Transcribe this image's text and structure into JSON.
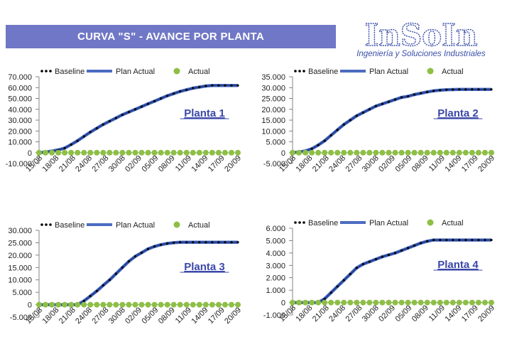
{
  "header": {
    "title": "CURVA \"S\" - AVANCE POR PLANTA"
  },
  "logo": {
    "name": "InSoIn",
    "tagline": "Ingeniería y Soluciones Industriales",
    "color": "#3b4fa8"
  },
  "colors": {
    "baseline": "#000000",
    "plan": "#1f3f95",
    "plan_outline": "#4b6cc1",
    "actual": "#8dbf45",
    "link": "#3b47a8"
  },
  "legend": {
    "baseline": "Baseline",
    "plan": "Plan Actual",
    "actual": "Actual"
  },
  "chart_data": [
    {
      "type": "line",
      "title": "Planta 1",
      "x_ticks": [
        "15/08",
        "18/08",
        "21/08",
        "24/08",
        "27/08",
        "30/08",
        "02/09",
        "05/09",
        "08/09",
        "11/09",
        "14/09",
        "17/09",
        "20/09"
      ],
      "y_ticks": [
        "-10.000",
        "0",
        "10.000",
        "20.000",
        "30.000",
        "40.000",
        "50.000",
        "60.000",
        "70.000"
      ],
      "ylim": [
        -10000,
        70000
      ],
      "x_start": "15/08",
      "baseline": [
        0,
        500,
        1500,
        2500,
        4200,
        7500,
        11000,
        15000,
        19000,
        22500,
        26000,
        29000,
        32000,
        35000,
        37500,
        40000,
        42500,
        45000,
        47500,
        50000,
        52500,
        54500,
        56500,
        58000,
        59500,
        60500,
        61500,
        62000,
        62000,
        62000,
        62000,
        62000
      ],
      "plan_actual": [
        0,
        500,
        1500,
        2500,
        4200,
        7500,
        11000,
        15000,
        19000,
        22500,
        26000,
        29000,
        32000,
        35000,
        37500,
        40000,
        42500,
        45000,
        47500,
        50000,
        52500,
        54500,
        56500,
        58000,
        59500,
        60500,
        61500,
        62000,
        62000,
        62000,
        62000,
        62000
      ],
      "actual": [
        0,
        0,
        0,
        0,
        0,
        0,
        0,
        0,
        0,
        0,
        0,
        0,
        0,
        0,
        0,
        0,
        0,
        0,
        0,
        0,
        0,
        0,
        0,
        0,
        0,
        0,
        0,
        0,
        0,
        0,
        0,
        0
      ]
    },
    {
      "type": "line",
      "title": "Planta 2",
      "x_ticks": [
        "15/08",
        "18/08",
        "21/08",
        "24/08",
        "27/08",
        "30/08",
        "02/09",
        "05/09",
        "08/09",
        "11/09",
        "14/09",
        "17/09",
        "20/09"
      ],
      "y_ticks": [
        "-5.000",
        "0",
        "5.000",
        "10.000",
        "15.000",
        "20.000",
        "25.000",
        "30.000",
        "35.000"
      ],
      "ylim": [
        -5000,
        35000
      ],
      "x_start": "15/08",
      "baseline": [
        0,
        300,
        800,
        1800,
        3500,
        5500,
        8000,
        10500,
        13000,
        15000,
        17000,
        18500,
        20000,
        21500,
        22500,
        23500,
        24500,
        25500,
        26000,
        26800,
        27400,
        28000,
        28500,
        28800,
        29000,
        29100,
        29200,
        29200,
        29200,
        29200,
        29200,
        29200
      ],
      "plan_actual": [
        0,
        300,
        800,
        1800,
        3500,
        5500,
        8000,
        10500,
        13000,
        15000,
        17000,
        18500,
        20000,
        21500,
        22500,
        23500,
        24500,
        25500,
        26000,
        26800,
        27400,
        28000,
        28500,
        28800,
        29000,
        29100,
        29200,
        29200,
        29200,
        29200,
        29200,
        29200
      ],
      "actual": [
        0,
        0,
        0,
        0,
        0,
        0,
        0,
        0,
        0,
        0,
        0,
        0,
        0,
        0,
        0,
        0,
        0,
        0,
        0,
        0,
        0,
        0,
        0,
        0,
        0,
        0,
        0,
        0,
        0,
        0,
        0,
        0
      ]
    },
    {
      "type": "line",
      "title": "Planta 3",
      "x_ticks": [
        "15/08",
        "18/08",
        "21/08",
        "24/08",
        "27/08",
        "30/08",
        "02/09",
        "05/09",
        "08/09",
        "11/09",
        "14/09",
        "17/09",
        "20/09"
      ],
      "y_ticks": [
        "-5.000",
        "0",
        "5.000",
        "10.000",
        "15.000",
        "20.000",
        "25.000",
        "30.000"
      ],
      "ylim": [
        -5000,
        30000
      ],
      "x_start": "15/08",
      "baseline": [
        0,
        0,
        0,
        0,
        0,
        0,
        0,
        1500,
        3500,
        5500,
        7800,
        10000,
        12500,
        15000,
        17500,
        19500,
        21000,
        22500,
        23500,
        24200,
        24700,
        25000,
        25200,
        25200,
        25200,
        25200,
        25200,
        25200,
        25200,
        25200,
        25200,
        25200
      ],
      "plan_actual": [
        0,
        0,
        0,
        0,
        0,
        0,
        0,
        1500,
        3500,
        5500,
        7800,
        10000,
        12500,
        15000,
        17500,
        19500,
        21000,
        22500,
        23500,
        24200,
        24700,
        25000,
        25200,
        25200,
        25200,
        25200,
        25200,
        25200,
        25200,
        25200,
        25200,
        25200
      ],
      "actual": [
        0,
        0,
        0,
        0,
        0,
        0,
        0,
        0,
        0,
        0,
        0,
        0,
        0,
        0,
        0,
        0,
        0,
        0,
        0,
        0,
        0,
        0,
        0,
        0,
        0,
        0,
        0,
        0,
        0,
        0,
        0,
        0
      ]
    },
    {
      "type": "line",
      "title": "Planta 4",
      "x_ticks": [
        "15/08",
        "18/08",
        "21/08",
        "24/08",
        "27/08",
        "30/08",
        "02/09",
        "05/09",
        "08/09",
        "11/09",
        "14/09",
        "17/09",
        "20/09"
      ],
      "y_ticks": [
        "-1.000",
        "0",
        "1.000",
        "2.000",
        "3.000",
        "4.000",
        "5.000",
        "6.000"
      ],
      "ylim": [
        -1000,
        6000
      ],
      "x_start": "15/08",
      "baseline": [
        0,
        0,
        0,
        0,
        0,
        300,
        800,
        1300,
        1800,
        2300,
        2800,
        3100,
        3300,
        3500,
        3700,
        3850,
        4000,
        4200,
        4400,
        4600,
        4800,
        4950,
        5050,
        5050,
        5050,
        5050,
        5050,
        5050,
        5050,
        5050,
        5050,
        5050
      ],
      "plan_actual": [
        0,
        0,
        0,
        0,
        0,
        300,
        800,
        1300,
        1800,
        2300,
        2800,
        3100,
        3300,
        3500,
        3700,
        3850,
        4000,
        4200,
        4400,
        4600,
        4800,
        4950,
        5050,
        5050,
        5050,
        5050,
        5050,
        5050,
        5050,
        5050,
        5050,
        5050
      ],
      "actual": [
        0,
        0,
        0,
        0,
        0,
        0,
        0,
        0,
        0,
        0,
        0,
        0,
        0,
        0,
        0,
        0,
        0,
        0,
        0,
        0,
        0,
        0,
        0,
        0,
        0,
        0,
        0,
        0,
        0,
        0,
        0,
        0
      ]
    }
  ]
}
